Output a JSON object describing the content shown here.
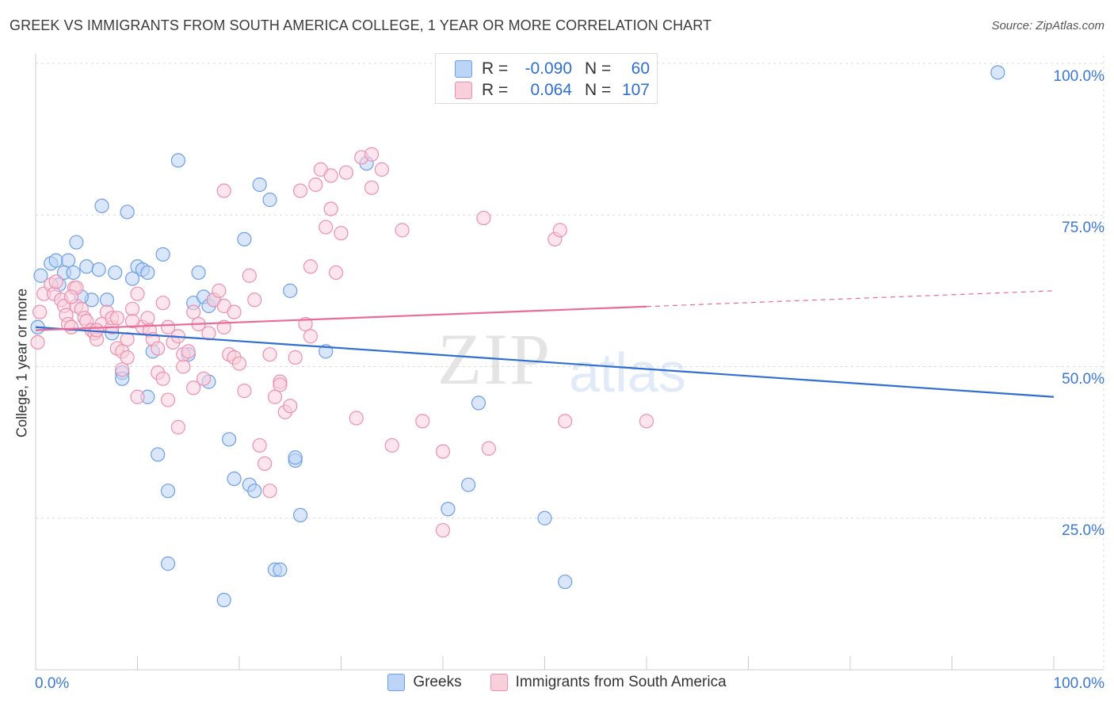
{
  "title": "GREEK VS IMMIGRANTS FROM SOUTH AMERICA COLLEGE, 1 YEAR OR MORE CORRELATION CHART",
  "source": "Source: ZipAtlas.com",
  "watermark": {
    "zip": "ZIP",
    "atlas": "atlas"
  },
  "stats_legend": {
    "r_label": "R =",
    "n_label": "N =",
    "rows": [
      {
        "series": "Greeks",
        "r": "-0.090",
        "n": "60",
        "color": "#6d9ee8"
      },
      {
        "series": "Immigrants from South America",
        "r": "0.064",
        "n": "107",
        "color": "#ee8fae"
      }
    ]
  },
  "legend": [
    {
      "label": "Greeks",
      "color": "#bcd4f5"
    },
    {
      "label": "Immigrants from South America",
      "color": "#f9cfdc"
    }
  ],
  "axes": {
    "ylabel": "College, 1 year or more",
    "x_min_label": "0.0%",
    "x_max_label": "100.0%",
    "y_tick_labels": [
      "100.0%",
      "75.0%",
      "50.0%",
      "25.0%"
    ]
  },
  "chart_data": {
    "type": "scatter",
    "title": "GREEK VS IMMIGRANTS FROM SOUTH AMERICA COLLEGE, 1 YEAR OR MORE CORRELATION CHART",
    "xlabel": "",
    "ylabel": "College, 1 year or more",
    "xlim": [
      0,
      100
    ],
    "ylim": [
      0,
      100
    ],
    "grid": true,
    "legend_position": "bottom",
    "series": [
      {
        "name": "Greeks",
        "color": "#6d9ee8",
        "fill": "#bcd4f5",
        "trend": {
          "x": [
            0,
            100
          ],
          "y": [
            56.5,
            45.0
          ],
          "dashed_from": null
        },
        "points": [
          [
            0.2,
            56.5
          ],
          [
            0.5,
            65.0
          ],
          [
            1.5,
            67.0
          ],
          [
            2.0,
            67.5
          ],
          [
            3.2,
            67.5
          ],
          [
            2.3,
            63.5
          ],
          [
            2.8,
            65.5
          ],
          [
            3.7,
            65.5
          ],
          [
            4.0,
            70.5
          ],
          [
            5.0,
            66.5
          ],
          [
            6.2,
            66.0
          ],
          [
            5.5,
            61.0
          ],
          [
            4.5,
            61.5
          ],
          [
            7.0,
            61.0
          ],
          [
            7.5,
            55.5
          ],
          [
            7.8,
            65.5
          ],
          [
            6.5,
            76.5
          ],
          [
            9.0,
            75.5
          ],
          [
            9.5,
            64.5
          ],
          [
            10.0,
            66.5
          ],
          [
            10.5,
            66.0
          ],
          [
            11.0,
            65.5
          ],
          [
            12.5,
            68.5
          ],
          [
            14.0,
            84.0
          ],
          [
            15.5,
            60.5
          ],
          [
            16.0,
            65.5
          ],
          [
            16.5,
            61.5
          ],
          [
            17.0,
            60.0
          ],
          [
            17.5,
            61.0
          ],
          [
            17.0,
            47.5
          ],
          [
            8.5,
            49.0
          ],
          [
            8.5,
            48.0
          ],
          [
            11.0,
            45.0
          ],
          [
            11.5,
            52.5
          ],
          [
            12.0,
            35.5
          ],
          [
            13.0,
            29.5
          ],
          [
            13.0,
            17.5
          ],
          [
            15.0,
            52.0
          ],
          [
            18.5,
            11.5
          ],
          [
            19.0,
            38.0
          ],
          [
            19.5,
            31.5
          ],
          [
            20.5,
            71.0
          ],
          [
            21.0,
            30.5
          ],
          [
            21.5,
            29.5
          ],
          [
            22.0,
            80.0
          ],
          [
            23.0,
            77.5
          ],
          [
            23.5,
            16.5
          ],
          [
            24.0,
            16.5
          ],
          [
            25.0,
            62.5
          ],
          [
            25.5,
            34.5
          ],
          [
            25.5,
            35.0
          ],
          [
            26.0,
            25.5
          ],
          [
            28.5,
            52.5
          ],
          [
            32.5,
            83.5
          ],
          [
            40.5,
            26.5
          ],
          [
            42.5,
            30.5
          ],
          [
            43.5,
            44.0
          ],
          [
            50.0,
            25.0
          ],
          [
            52.0,
            14.5
          ],
          [
            94.5,
            98.5
          ]
        ]
      },
      {
        "name": "Immigrants from South America",
        "color": "#ee8fae",
        "fill": "#f9cfdc",
        "trend": {
          "x": [
            0,
            100
          ],
          "y": [
            56.0,
            62.5
          ],
          "dashed_from": 60
        },
        "points": [
          [
            0.2,
            54.0
          ],
          [
            0.4,
            59.0
          ],
          [
            0.8,
            62.0
          ],
          [
            1.5,
            63.5
          ],
          [
            1.8,
            62.0
          ],
          [
            2.0,
            64.0
          ],
          [
            2.5,
            61.0
          ],
          [
            2.8,
            60.0
          ],
          [
            3.0,
            58.5
          ],
          [
            3.2,
            57.0
          ],
          [
            3.5,
            56.5
          ],
          [
            3.8,
            63.0
          ],
          [
            4.0,
            60.0
          ],
          [
            4.5,
            59.5
          ],
          [
            4.8,
            58.0
          ],
          [
            5.0,
            57.5
          ],
          [
            5.5,
            56.0
          ],
          [
            5.8,
            55.5
          ],
          [
            6.0,
            54.5
          ],
          [
            6.5,
            57.0
          ],
          [
            7.0,
            59.0
          ],
          [
            7.5,
            56.5
          ],
          [
            7.5,
            58.0
          ],
          [
            8.0,
            53.0
          ],
          [
            8.5,
            52.5
          ],
          [
            9.0,
            54.5
          ],
          [
            8.5,
            49.5
          ],
          [
            9.0,
            51.5
          ],
          [
            9.5,
            59.5
          ],
          [
            10.0,
            45.0
          ],
          [
            10.5,
            56.5
          ],
          [
            10.0,
            62.0
          ],
          [
            11.0,
            58.0
          ],
          [
            11.2,
            56.0
          ],
          [
            11.5,
            54.5
          ],
          [
            12.0,
            49.0
          ],
          [
            12.0,
            53.0
          ],
          [
            12.5,
            48.0
          ],
          [
            12.5,
            60.5
          ],
          [
            13.0,
            56.5
          ],
          [
            13.0,
            44.5
          ],
          [
            13.5,
            54.0
          ],
          [
            14.0,
            55.0
          ],
          [
            14.0,
            40.0
          ],
          [
            14.5,
            50.0
          ],
          [
            14.5,
            52.0
          ],
          [
            15.0,
            52.5
          ],
          [
            15.5,
            59.0
          ],
          [
            15.5,
            46.5
          ],
          [
            16.0,
            57.0
          ],
          [
            16.5,
            48.0
          ],
          [
            17.0,
            55.5
          ],
          [
            17.5,
            61.0
          ],
          [
            18.0,
            62.5
          ],
          [
            18.5,
            79.0
          ],
          [
            18.5,
            60.0
          ],
          [
            18.5,
            56.5
          ],
          [
            19.0,
            52.0
          ],
          [
            19.5,
            51.5
          ],
          [
            19.5,
            59.0
          ],
          [
            20.0,
            50.5
          ],
          [
            20.5,
            46.0
          ],
          [
            21.0,
            65.0
          ],
          [
            21.5,
            61.0
          ],
          [
            22.0,
            37.0
          ],
          [
            22.5,
            34.0
          ],
          [
            23.0,
            29.5
          ],
          [
            23.0,
            52.0
          ],
          [
            23.5,
            45.0
          ],
          [
            24.0,
            47.5
          ],
          [
            24.0,
            47.0
          ],
          [
            24.5,
            42.5
          ],
          [
            25.0,
            43.5
          ],
          [
            25.5,
            51.5
          ],
          [
            26.0,
            79.0
          ],
          [
            26.5,
            57.0
          ],
          [
            27.0,
            66.5
          ],
          [
            27.0,
            55.0
          ],
          [
            27.5,
            80.0
          ],
          [
            28.0,
            82.5
          ],
          [
            28.5,
            73.0
          ],
          [
            29.0,
            81.5
          ],
          [
            29.0,
            76.0
          ],
          [
            30.0,
            72.0
          ],
          [
            29.5,
            65.5
          ],
          [
            30.5,
            82.0
          ],
          [
            31.5,
            41.5
          ],
          [
            32.0,
            84.5
          ],
          [
            33.0,
            79.5
          ],
          [
            33.0,
            85.0
          ],
          [
            34.0,
            82.5
          ],
          [
            35.0,
            37.0
          ],
          [
            36.0,
            72.5
          ],
          [
            38.0,
            41.0
          ],
          [
            40.0,
            23.0
          ],
          [
            40.0,
            36.0
          ],
          [
            44.0,
            74.5
          ],
          [
            44.5,
            36.5
          ],
          [
            51.0,
            71.0
          ],
          [
            51.5,
            72.5
          ],
          [
            52.0,
            41.0
          ],
          [
            60.0,
            41.0
          ],
          [
            6.0,
            56.0
          ],
          [
            8.0,
            58.0
          ],
          [
            9.5,
            57.5
          ],
          [
            4.0,
            63.0
          ],
          [
            3.5,
            61.5
          ]
        ]
      }
    ]
  }
}
